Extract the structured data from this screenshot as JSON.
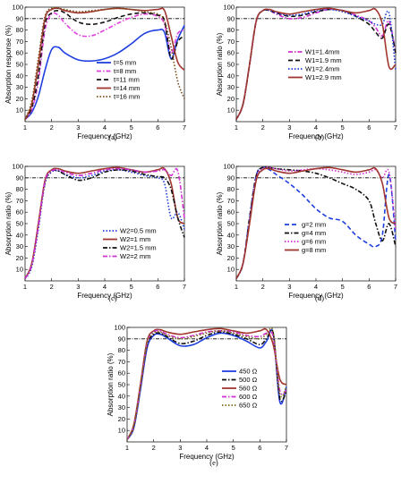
{
  "figure": {
    "panels": [
      {
        "label": "(a)",
        "xlabel": "Frequency (GHz)",
        "ylabel": "Absorption response (%)",
        "xlim": [
          1,
          7
        ],
        "ylim": [
          0,
          100
        ],
        "xticks": [
          "1",
          "2",
          "3",
          "4",
          "5",
          "6",
          "7"
        ],
        "yticks": [
          "10",
          "20",
          "30",
          "40",
          "50",
          "60",
          "70",
          "80",
          "90",
          "100"
        ],
        "legend_position": "lower-right"
      },
      {
        "label": "(b)",
        "xlabel": "Frequency (GHz)",
        "ylabel": "Absorption ratio (%)",
        "xlim": [
          1,
          7
        ],
        "ylim": [
          0,
          100
        ],
        "xticks": [
          "1",
          "2",
          "3",
          "4",
          "5",
          "6",
          "7"
        ],
        "yticks": [
          "10",
          "20",
          "30",
          "40",
          "50",
          "60",
          "70",
          "80",
          "90",
          "100"
        ],
        "legend_position": "lower-right"
      },
      {
        "label": "(c)",
        "xlabel": "Frequency (GHz)",
        "ylabel": "Absorption ratio (%)",
        "xlim": [
          1,
          7
        ],
        "ylim": [
          0,
          100
        ],
        "xticks": [
          "1",
          "2",
          "3",
          "4",
          "5",
          "6",
          "7"
        ],
        "yticks": [
          "10",
          "20",
          "30",
          "40",
          "50",
          "60",
          "70",
          "80",
          "90",
          "100"
        ],
        "legend_position": "lower-right"
      },
      {
        "label": "(d)",
        "xlabel": "Frequency (GHz)",
        "ylabel": "Absorption ratio (%)",
        "xlim": [
          1,
          7
        ],
        "ylim": [
          0,
          100
        ],
        "xticks": [
          "1",
          "2",
          "3",
          "4",
          "5",
          "6",
          "7"
        ],
        "yticks": [
          "10",
          "20",
          "30",
          "40",
          "50",
          "60",
          "70",
          "80",
          "90",
          "100"
        ],
        "legend_position": "lower-right"
      },
      {
        "label": "(e)",
        "xlabel": "Frequency (GHz)",
        "ylabel": "Absorption ratio (%)",
        "xlim": [
          1,
          7
        ],
        "ylim": [
          0,
          100
        ],
        "xticks": [
          "1",
          "2",
          "3",
          "4",
          "5",
          "6",
          "7"
        ],
        "yticks": [
          "10",
          "20",
          "30",
          "40",
          "50",
          "60",
          "70",
          "80",
          "90",
          "100"
        ],
        "legend_position": "lower-right"
      }
    ]
  },
  "chart_data": [
    {
      "type": "line",
      "panel": "(a)",
      "xlabel": "Frequency (GHz)",
      "ylabel": "Absorption response (%)",
      "xlim": [
        1,
        7
      ],
      "ylim": [
        0,
        100
      ],
      "grid": false,
      "reference_line": 90,
      "x": [
        1.0,
        1.25,
        1.5,
        1.75,
        2.0,
        2.25,
        2.5,
        3.0,
        3.5,
        4.0,
        4.5,
        5.0,
        5.5,
        6.0,
        6.25,
        6.5,
        6.75,
        7.0
      ],
      "series": [
        {
          "name": "t=5 mm",
          "color": "#1f3fe0",
          "dash": "solid",
          "values": [
            2,
            8,
            22,
            45,
            63,
            65,
            60,
            54,
            53,
            55,
            60,
            68,
            77,
            80,
            78,
            55,
            72,
            84
          ]
        },
        {
          "name": "t=8 mm",
          "color": "#e040e0",
          "dash": "dashdot",
          "values": [
            2,
            10,
            35,
            80,
            94,
            93,
            86,
            76,
            75,
            80,
            86,
            91,
            94,
            92,
            85,
            60,
            77,
            80
          ]
        },
        {
          "name": "t=11 mm",
          "color": "#111111",
          "dash": "dash",
          "values": [
            2,
            12,
            40,
            85,
            95,
            97,
            95,
            87,
            85,
            87,
            91,
            94,
            95,
            93,
            88,
            55,
            70,
            75
          ]
        },
        {
          "name": "t=14 mm",
          "color": "#a0362e",
          "dash": "solid",
          "values": [
            2,
            15,
            50,
            90,
            98,
            99,
            97,
            95,
            96,
            98,
            99,
            98,
            97,
            98,
            97,
            75,
            52,
            45
          ]
        },
        {
          "name": "t=16 mm",
          "color": "#7a4a1a",
          "dash": "dot",
          "values": [
            2,
            18,
            55,
            92,
            99,
            99,
            98,
            96,
            97,
            98,
            99,
            98,
            96,
            94,
            88,
            65,
            35,
            20
          ]
        }
      ]
    },
    {
      "type": "line",
      "panel": "(b)",
      "xlabel": "Frequency (GHz)",
      "ylabel": "Absorption ratio (%)",
      "xlim": [
        1,
        7
      ],
      "ylim": [
        0,
        100
      ],
      "grid": false,
      "reference_line": 90,
      "x": [
        1.0,
        1.25,
        1.5,
        1.75,
        2.0,
        2.25,
        2.5,
        3.0,
        3.5,
        4.0,
        4.5,
        5.0,
        5.5,
        6.0,
        6.25,
        6.5,
        6.75,
        7.0
      ],
      "series": [
        {
          "name": "W1=1.4mm",
          "color": "#d030d0",
          "dash": "dashdot",
          "values": [
            2,
            15,
            50,
            88,
            97,
            97,
            94,
            90,
            91,
            95,
            98,
            97,
            93,
            88,
            82,
            75,
            88,
            60
          ]
        },
        {
          "name": "W1=1.9 mm",
          "color": "#111111",
          "dash": "dash",
          "values": [
            2,
            15,
            50,
            88,
            97,
            97,
            95,
            92,
            93,
            96,
            98,
            97,
            92,
            85,
            78,
            73,
            85,
            60
          ]
        },
        {
          "name": "W1=2.4mm",
          "color": "#1f3fe0",
          "dash": "dot",
          "values": [
            2,
            15,
            50,
            88,
            97,
            97,
            95,
            93,
            94,
            97,
            98,
            96,
            92,
            88,
            85,
            85,
            95,
            45
          ]
        },
        {
          "name": "W1=2.9 mm",
          "color": "#a0362e",
          "dash": "solid",
          "values": [
            2,
            15,
            50,
            88,
            97,
            98,
            96,
            94,
            96,
            98,
            99,
            97,
            95,
            97,
            98,
            85,
            48,
            50
          ]
        }
      ]
    },
    {
      "type": "line",
      "panel": "(c)",
      "xlabel": "Frequency (GHz)",
      "ylabel": "Absorption ratio (%)",
      "xlim": [
        1,
        7
      ],
      "ylim": [
        0,
        100
      ],
      "grid": false,
      "reference_line": 90,
      "x": [
        1.0,
        1.25,
        1.5,
        1.75,
        2.0,
        2.25,
        2.5,
        3.0,
        3.5,
        4.0,
        4.5,
        5.0,
        5.5,
        6.0,
        6.25,
        6.5,
        6.75,
        7.0
      ],
      "series": [
        {
          "name": "W2=0.5 mm",
          "color": "#1f3fe0",
          "dash": "dot",
          "values": [
            2,
            12,
            45,
            85,
            95,
            96,
            93,
            90,
            92,
            96,
            97,
            95,
            92,
            90,
            85,
            55,
            60,
            45
          ]
        },
        {
          "name": "W2=1 mm",
          "color": "#a0362e",
          "dash": "solid",
          "values": [
            2,
            15,
            50,
            88,
            97,
            98,
            96,
            94,
            96,
            98,
            99,
            97,
            95,
            97,
            98,
            85,
            55,
            50
          ]
        },
        {
          "name": "W2=1.5 mm",
          "color": "#111111",
          "dash": "dashdot",
          "values": [
            2,
            14,
            48,
            86,
            96,
            96,
            93,
            88,
            90,
            95,
            97,
            96,
            93,
            91,
            90,
            80,
            55,
            38
          ]
        },
        {
          "name": "W2=2 mm",
          "color": "#d030d0",
          "dash": "dashdot",
          "values": [
            2,
            14,
            48,
            87,
            96,
            97,
            95,
            92,
            94,
            97,
            98,
            97,
            95,
            96,
            97,
            92,
            96,
            55
          ]
        }
      ]
    },
    {
      "type": "line",
      "panel": "(d)",
      "xlabel": "Frequency (GHz)",
      "ylabel": "Absorption ratio (%)",
      "xlim": [
        1,
        7
      ],
      "ylim": [
        0,
        100
      ],
      "grid": false,
      "reference_line": 90,
      "x": [
        1.0,
        1.25,
        1.5,
        1.75,
        2.0,
        2.25,
        2.5,
        3.0,
        3.5,
        4.0,
        4.5,
        5.0,
        5.5,
        6.0,
        6.25,
        6.5,
        6.75,
        7.0
      ],
      "series": [
        {
          "name": "g=2 mm",
          "color": "#1f3fe0",
          "dash": "dash",
          "values": [
            2,
            15,
            55,
            92,
            99,
            97,
            93,
            85,
            75,
            63,
            55,
            52,
            40,
            32,
            30,
            40,
            93,
            35
          ]
        },
        {
          "name": "g=4 mm",
          "color": "#111111",
          "dash": "dashdot",
          "values": [
            2,
            15,
            55,
            92,
            99,
            99,
            98,
            97,
            96,
            94,
            90,
            85,
            80,
            70,
            50,
            35,
            50,
            30
          ]
        },
        {
          "name": "g=6 mm",
          "color": "#d030d0",
          "dash": "dot",
          "values": [
            2,
            15,
            52,
            90,
            98,
            99,
            98,
            96,
            97,
            98,
            97,
            95,
            93,
            95,
            97,
            90,
            95,
            45
          ]
        },
        {
          "name": "g=8 mm",
          "color": "#a0362e",
          "dash": "solid",
          "values": [
            2,
            15,
            50,
            88,
            97,
            98,
            96,
            94,
            96,
            98,
            99,
            97,
            95,
            97,
            98,
            85,
            55,
            50
          ]
        }
      ]
    },
    {
      "type": "line",
      "panel": "(e)",
      "xlabel": "Frequency (GHz)",
      "ylabel": "Absorption ratio (%)",
      "xlim": [
        1,
        7
      ],
      "ylim": [
        0,
        100
      ],
      "grid": false,
      "reference_line": 90,
      "x": [
        1.0,
        1.25,
        1.5,
        1.75,
        2.0,
        2.25,
        2.5,
        3.0,
        3.5,
        4.0,
        4.5,
        5.0,
        5.5,
        6.0,
        6.25,
        6.5,
        6.75,
        7.0
      ],
      "series": [
        {
          "name": "450 Ω",
          "color": "#1f3fe0",
          "dash": "solid",
          "values": [
            2,
            12,
            45,
            82,
            93,
            94,
            91,
            84,
            85,
            91,
            95,
            93,
            88,
            82,
            88,
            95,
            35,
            48
          ]
        },
        {
          "name": "500 Ω",
          "color": "#111111",
          "dash": "dashdot",
          "values": [
            2,
            13,
            47,
            84,
            94,
            95,
            92,
            86,
            88,
            93,
            96,
            94,
            90,
            85,
            90,
            95,
            38,
            45
          ]
        },
        {
          "name": "560 Ω",
          "color": "#a0362e",
          "dash": "solid",
          "values": [
            2,
            15,
            50,
            88,
            97,
            98,
            96,
            94,
            96,
            98,
            99,
            97,
            95,
            97,
            98,
            85,
            55,
            50
          ]
        },
        {
          "name": "600 Ω",
          "color": "#d030d0",
          "dash": "dashdot",
          "values": [
            2,
            14,
            48,
            86,
            96,
            97,
            94,
            91,
            93,
            96,
            97,
            96,
            93,
            92,
            95,
            92,
            45,
            45
          ]
        },
        {
          "name": "650 Ω",
          "color": "#7a6a1a",
          "dash": "dot",
          "values": [
            2,
            14,
            48,
            86,
            95,
            96,
            93,
            90,
            92,
            95,
            97,
            95,
            92,
            90,
            94,
            96,
            42,
            48
          ]
        }
      ]
    }
  ]
}
